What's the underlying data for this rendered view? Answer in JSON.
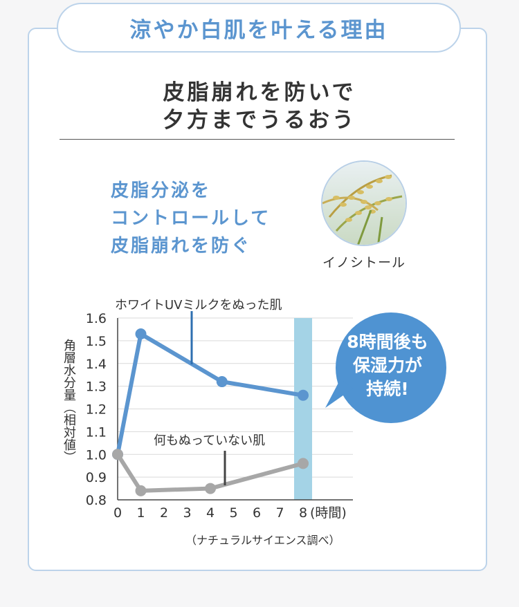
{
  "tab_title": "涼やか白肌を叶える理由",
  "headline": {
    "line1": "皮脂崩れを防いで",
    "line2": "夕方までうるおう"
  },
  "feature": {
    "line1": "皮脂分泌を",
    "line2": "コントロールして",
    "line3": "皮脂崩れを防ぐ"
  },
  "ingredient_caption": "イノシトール",
  "bubble": {
    "line1": "8時間後も",
    "line2": "保湿力が",
    "line3": "持続!"
  },
  "source_note": "（ナチュラルサイエンス調べ）",
  "colors": {
    "accent": "#5b95cf",
    "series_milk": "#5b95cf",
    "series_bare": "#a7a7a7",
    "highlight_bar": "#a4d3e6",
    "bubble": "#4f93d2"
  },
  "chart_data": {
    "type": "line",
    "x": [
      0,
      1,
      2,
      3,
      4,
      5,
      6,
      7,
      8
    ],
    "xticks": [
      "0",
      "1",
      "2",
      "3",
      "4",
      "5",
      "6",
      "7",
      "8"
    ],
    "xunit": "(時間)",
    "ylabel": "角層水分量（相対値）",
    "ylim": [
      0.8,
      1.6
    ],
    "yticks": [
      "1.6",
      "1.5",
      "1.4",
      "1.3",
      "1.2",
      "1.1",
      "1.0",
      "0.9",
      "0.8"
    ],
    "grid": true,
    "highlight_x": 8,
    "series": [
      {
        "name": "ホワイトUVミルクをぬった肌",
        "points": [
          [
            0,
            1.0
          ],
          [
            1,
            1.53
          ],
          [
            4.5,
            1.32
          ],
          [
            8,
            1.26
          ]
        ]
      },
      {
        "name": "何もぬっていない肌",
        "points": [
          [
            0,
            1.0
          ],
          [
            1,
            0.84
          ],
          [
            4,
            0.85
          ],
          [
            8,
            0.96
          ]
        ]
      }
    ]
  }
}
